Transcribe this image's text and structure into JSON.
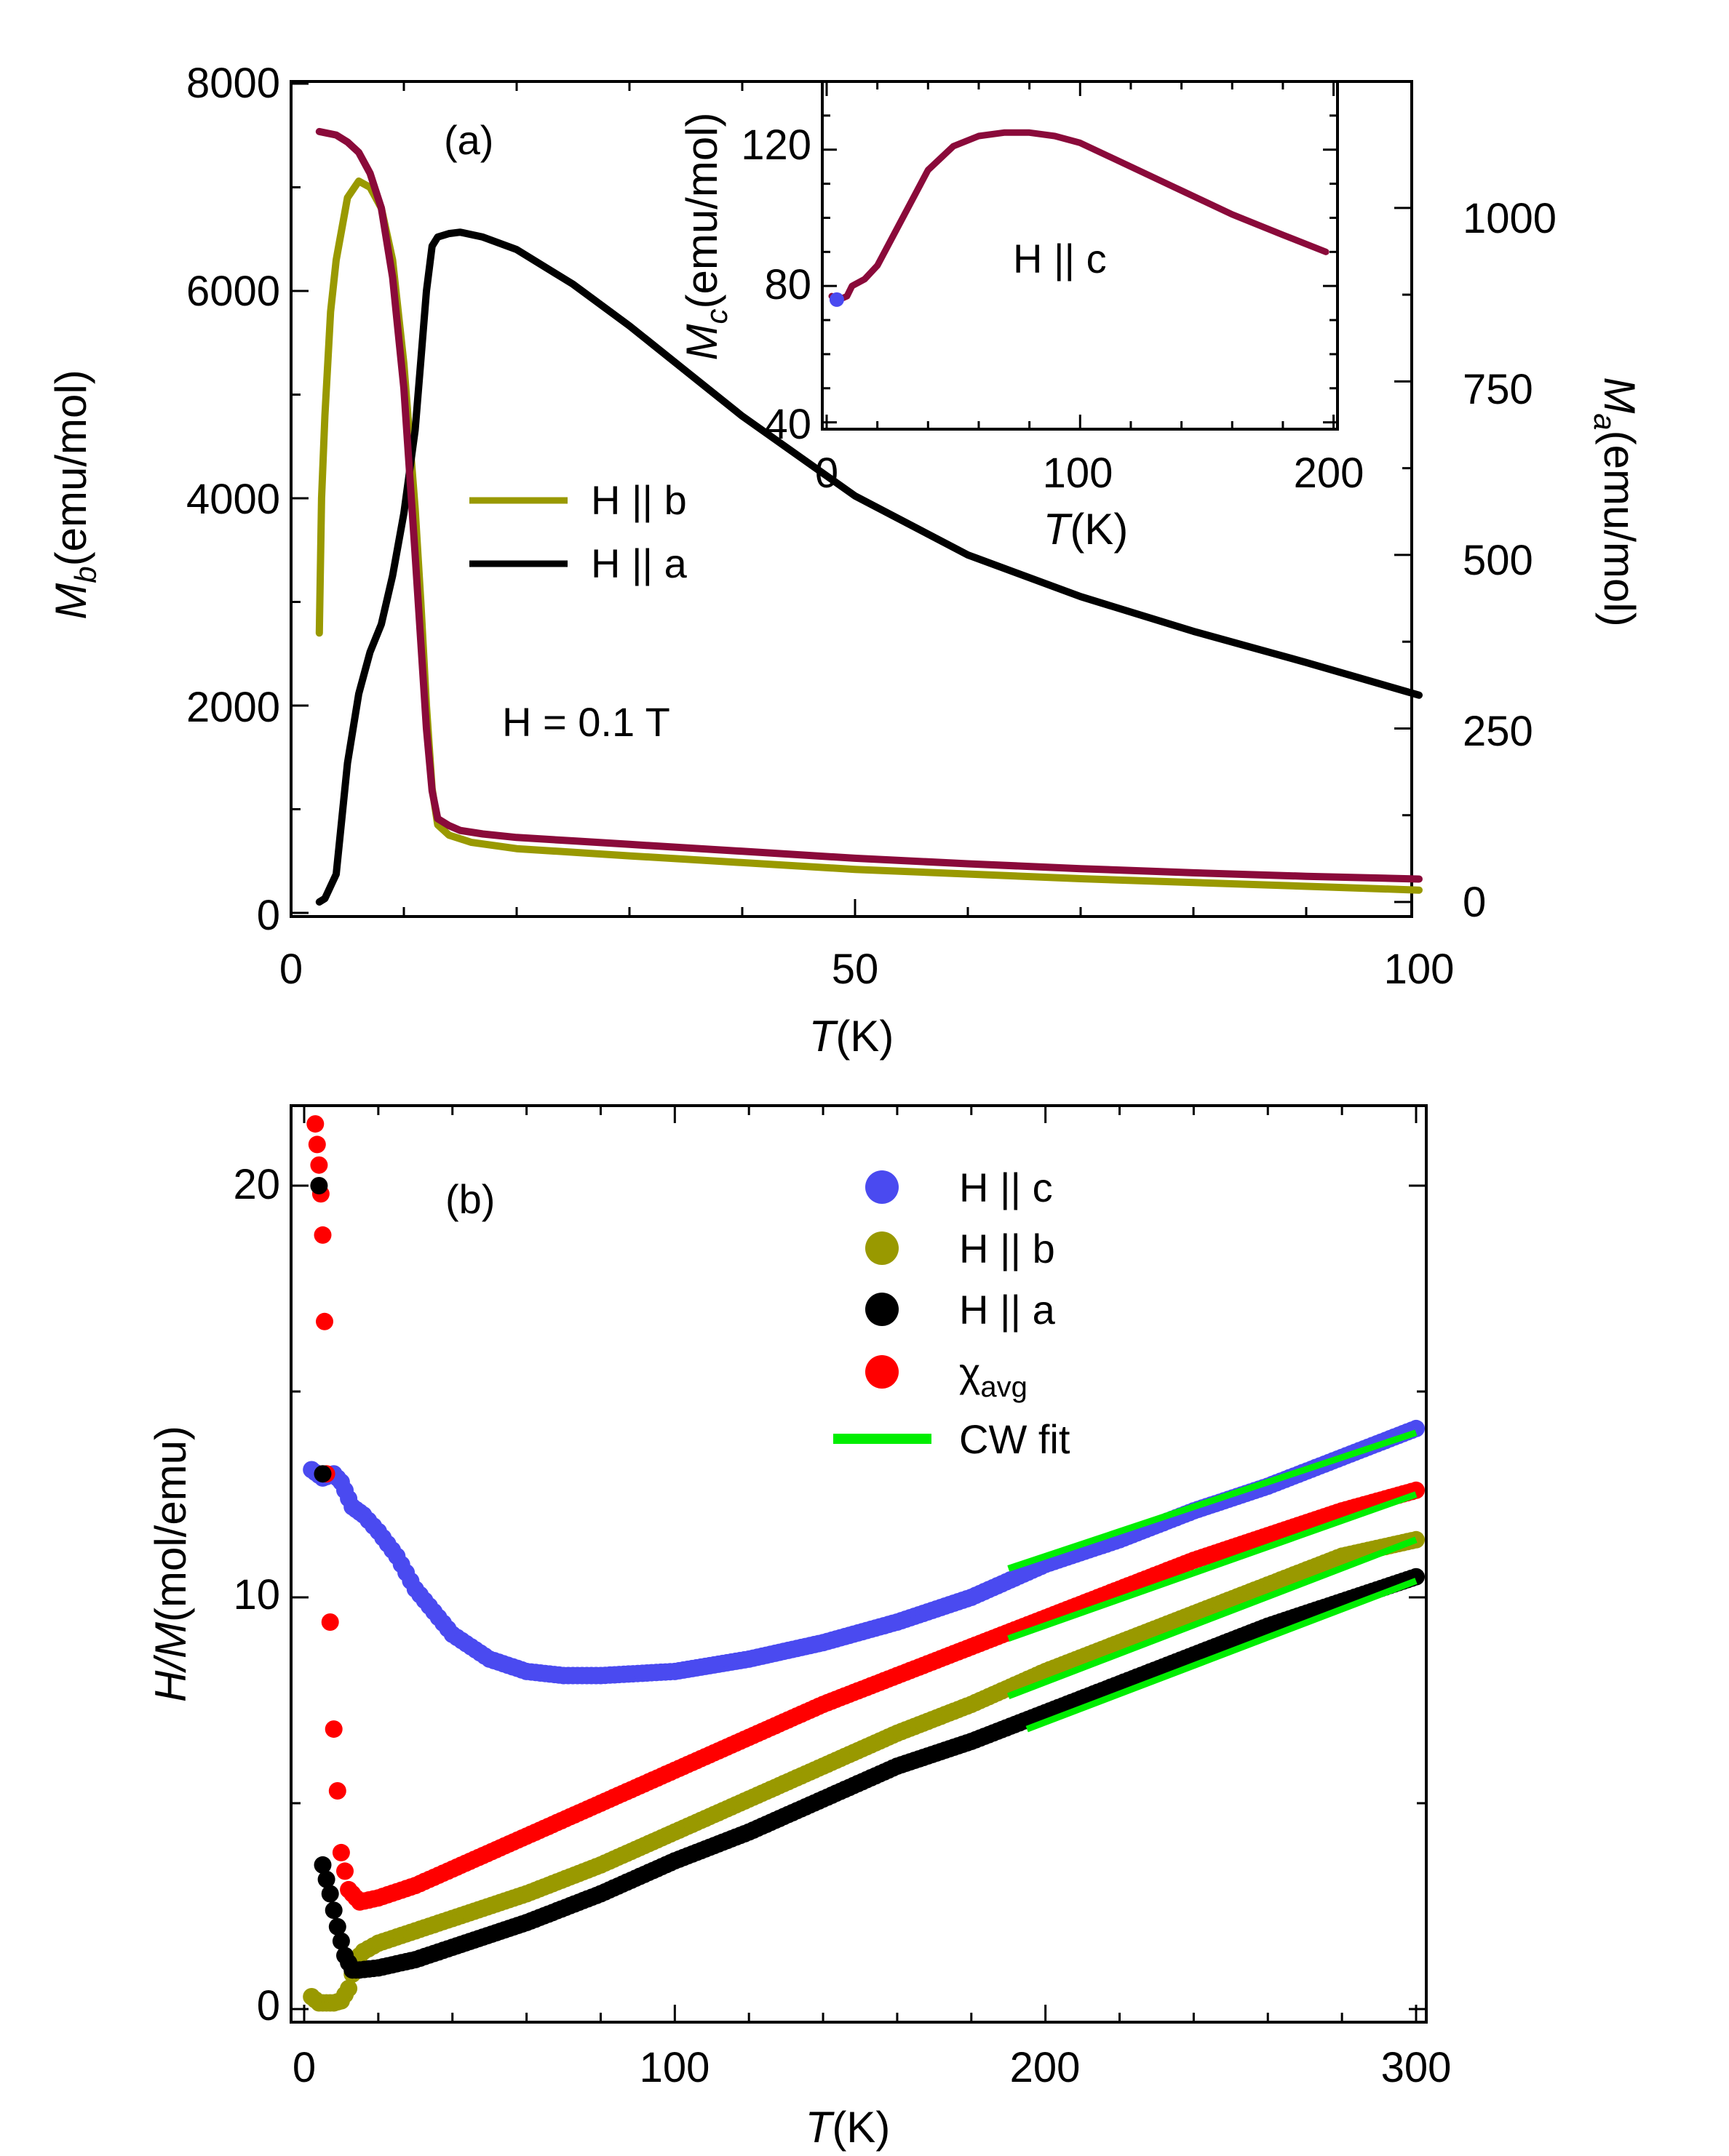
{
  "chart_data": [
    {
      "panel": "(a)",
      "type": "line",
      "xlabel": "T(K)",
      "xlabel_var": "T",
      "xlabel_unit": "(K)",
      "ylabel_left": "Mb(emu/mol)",
      "ylabel_left_var": "M",
      "ylabel_left_sub": "b",
      "ylabel_left_unit": "(emu/mol)",
      "ylabel_right": "Ma(emu/mol)",
      "ylabel_right_var": "M",
      "ylabel_right_sub": "a",
      "ylabel_right_unit": "(emu/mol)",
      "xlim": [
        0,
        100
      ],
      "ylim_left": [
        0,
        8000
      ],
      "ylim_right": [
        0,
        1200
      ],
      "xticks": [
        "0",
        "50",
        "100"
      ],
      "yticks_left": [
        "0",
        "2000",
        "4000",
        "6000",
        "8000"
      ],
      "yticks_right": [
        "0",
        "250",
        "500",
        "750",
        "1000"
      ],
      "annotation_field": "H = 0.1 T",
      "legend": [
        {
          "label": "H || b",
          "color": "#999900"
        },
        {
          "label": "H || a",
          "color": "#000000"
        }
      ],
      "series": [
        {
          "name": "H || b",
          "axis": "left",
          "color": "#999900",
          "x": [
            2.5,
            2.7,
            3.0,
            3.5,
            4.0,
            5.0,
            6.0,
            7.0,
            8.0,
            9.0,
            10.0,
            11.0,
            11.5,
            12.0,
            12.5,
            13.0,
            14.0,
            16.0,
            20.0,
            30.0,
            50.0,
            70.0,
            100.0
          ],
          "y": [
            2700,
            4000,
            4800,
            5800,
            6300,
            6900,
            7060,
            7000,
            6800,
            6300,
            5300,
            3900,
            3000,
            2000,
            1200,
            850,
            750,
            680,
            620,
            550,
            420,
            330,
            220
          ]
        },
        {
          "name": "H || a (Ma, right axis)",
          "axis": "right",
          "color": "#000000",
          "x": [
            2.5,
            3.0,
            4.0,
            5.0,
            6.0,
            7.0,
            8.0,
            9.0,
            10.0,
            11.0,
            11.5,
            12.0,
            12.5,
            13.0,
            14.0,
            15.0,
            17.0,
            20.0,
            25.0,
            30.0,
            40.0,
            50.0,
            60.0,
            70.0,
            80.0,
            90.0,
            100.0
          ],
          "y": [
            0,
            5,
            40,
            200,
            300,
            360,
            400,
            470,
            560,
            680,
            780,
            880,
            945,
            958,
            963,
            965,
            958,
            940,
            890,
            830,
            700,
            585,
            500,
            440,
            390,
            345,
            298
          ]
        },
        {
          "name": "H || b (warm branch)",
          "axis": "right",
          "color": "#8a0a3a",
          "x": [
            2.5,
            4.0,
            5.0,
            6.0,
            7.0,
            8.0,
            9.0,
            10.0,
            11.0,
            12.0,
            12.5,
            13.0,
            14.0,
            15.0,
            17.0,
            20.0,
            25.0,
            30.0,
            40.0,
            50.0,
            60.0,
            70.0,
            80.0,
            90.0,
            100.0
          ],
          "y": [
            1110,
            1105,
            1095,
            1080,
            1050,
            1000,
            900,
            740,
            500,
            250,
            160,
            120,
            110,
            103,
            98,
            93,
            88,
            83,
            73,
            63,
            55,
            48,
            42,
            37,
            33
          ]
        }
      ],
      "inset": {
        "type": "line",
        "annotation": "H || c",
        "xlabel": "T(K)",
        "xlabel_var": "T",
        "xlabel_unit": "(K)",
        "ylabel": "Mc(emu/mol)",
        "ylabel_var": "M",
        "ylabel_sub": "c",
        "ylabel_unit": "(emu/mol)",
        "xlim": [
          0,
          205
        ],
        "ylim": [
          38,
          140
        ],
        "xticks": [
          "0",
          "100",
          "200"
        ],
        "yticks": [
          "40",
          "80",
          "120"
        ],
        "series": [
          {
            "name": "H || c",
            "color": "#8a0a3a",
            "x": [
              2,
              5,
              8,
              10,
              15,
              20,
              30,
              40,
              50,
              60,
              70,
              80,
              90,
              100,
              120,
              140,
              160,
              180,
              197
            ],
            "y": [
              77,
              76,
              77,
              80,
              82,
              86,
              100,
              114,
              121,
              124,
              125,
              125,
              124,
              122,
              115,
              108,
              101,
              95,
              90
            ]
          }
        ]
      }
    },
    {
      "panel": "(b)",
      "type": "scatter",
      "xlabel": "T(K)",
      "xlabel_var": "T",
      "xlabel_unit": "(K)",
      "ylabel": "H/M(mol/emu)",
      "ylabel_var": "H/M",
      "ylabel_unit": "(mol/emu)",
      "xlim": [
        -5,
        305
      ],
      "ylim": [
        -0.5,
        22
      ],
      "xticks": [
        "0",
        "100",
        "200",
        "300"
      ],
      "yticks": [
        "0",
        "10",
        "20"
      ],
      "legend": [
        {
          "label": "H || c",
          "color": "#4a4af0",
          "marker": "circle"
        },
        {
          "label": "H || b",
          "color": "#999900",
          "marker": "circle"
        },
        {
          "label": "H || a",
          "color": "#000000",
          "marker": "circle"
        },
        {
          "label": "χavg",
          "label_main": "χ",
          "label_sub": "avg",
          "color": "#ff0000",
          "marker": "circle"
        },
        {
          "label": "CW fit",
          "color": "#00ee00",
          "marker": "line"
        }
      ],
      "series": [
        {
          "name": "H || c",
          "color": "#4a4af0",
          "x": [
            2,
            5,
            8,
            10,
            13,
            16,
            20,
            25,
            30,
            40,
            50,
            60,
            70,
            80,
            90,
            100,
            120,
            140,
            160,
            180,
            200,
            220,
            240,
            260,
            280,
            300
          ],
          "y": [
            13.1,
            12.9,
            13.0,
            12.8,
            12.2,
            12.0,
            11.6,
            11.0,
            10.2,
            9.1,
            8.5,
            8.2,
            8.1,
            8.1,
            8.15,
            8.2,
            8.5,
            8.9,
            9.4,
            10.0,
            10.8,
            11.4,
            12.1,
            12.7,
            13.4,
            14.1
          ]
        },
        {
          "name": "H || b",
          "color": "#999900",
          "x": [
            2,
            4,
            6,
            8,
            10,
            12,
            14,
            16,
            20,
            30,
            40,
            60,
            80,
            100,
            120,
            140,
            160,
            180,
            200,
            220,
            240,
            260,
            280,
            300
          ],
          "y": [
            0.3,
            0.15,
            0.15,
            0.15,
            0.2,
            0.5,
            1.2,
            1.4,
            1.6,
            1.9,
            2.2,
            2.8,
            3.5,
            4.3,
            5.1,
            5.9,
            6.7,
            7.4,
            8.2,
            8.9,
            9.6,
            10.3,
            11.0,
            11.4
          ]
        },
        {
          "name": "H || a",
          "color": "#000000",
          "x": [
            5,
            7,
            9,
            11,
            13,
            15,
            20,
            30,
            40,
            60,
            80,
            100,
            120,
            140,
            160,
            180,
            200,
            220,
            240,
            260,
            280,
            300
          ],
          "y": [
            3.5,
            2.8,
            2.0,
            1.3,
            0.95,
            0.95,
            1.0,
            1.2,
            1.5,
            2.1,
            2.8,
            3.6,
            4.3,
            5.1,
            5.9,
            6.5,
            7.2,
            7.9,
            8.6,
            9.3,
            9.9,
            10.5
          ]
        },
        {
          "name": "χavg",
          "color": "#ff0000",
          "x": [
            3,
            3.5,
            4,
            4.5,
            5,
            5.5,
            6,
            7,
            8,
            9,
            10,
            12,
            15,
            20,
            30,
            40,
            60,
            80,
            100,
            120,
            140,
            160,
            180,
            200,
            220,
            240,
            260,
            280,
            300
          ],
          "y": [
            21.5,
            21.0,
            20.5,
            19.8,
            18.8,
            16.7,
            13.0,
            9.4,
            6.8,
            5.3,
            3.8,
            2.9,
            2.6,
            2.7,
            3.0,
            3.4,
            4.2,
            5.0,
            5.8,
            6.6,
            7.4,
            8.1,
            8.8,
            9.5,
            10.2,
            10.9,
            11.5,
            12.1,
            12.6
          ]
        },
        {
          "name": "H || a (low-T points)",
          "color": "#000000",
          "x": [
            4,
            5
          ],
          "y": [
            20.0,
            13.0
          ]
        }
      ],
      "fits": [
        {
          "name": "CW fit H || c",
          "color": "#00ee00",
          "x": [
            190,
            300
          ],
          "y": [
            10.7,
            14.0
          ]
        },
        {
          "name": "CW fit χavg",
          "color": "#00ee00",
          "x": [
            190,
            300
          ],
          "y": [
            9.0,
            12.5
          ]
        },
        {
          "name": "CW fit H || b",
          "color": "#00ee00",
          "x": [
            190,
            300
          ],
          "y": [
            7.6,
            11.4
          ]
        },
        {
          "name": "CW fit H || a",
          "color": "#00ee00",
          "x": [
            195,
            300
          ],
          "y": [
            6.8,
            10.4
          ]
        }
      ]
    }
  ]
}
